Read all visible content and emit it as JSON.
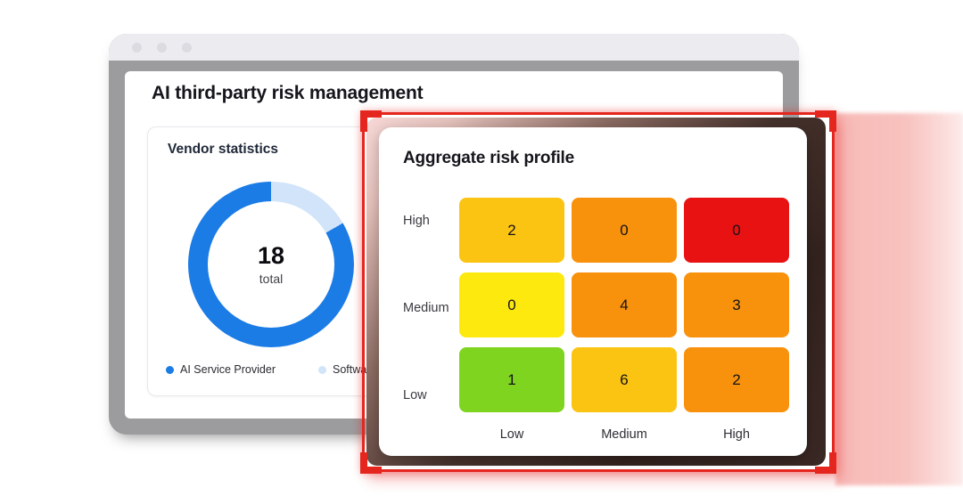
{
  "back_window": {
    "title": "AI third-party risk management",
    "titlebar": {
      "dot_color": "#DCDBE1"
    },
    "vendor_card": {
      "title": "Vendor statistics",
      "center_value": "18",
      "center_label": "total",
      "legend": [
        {
          "label": "AI Service Provider",
          "color": "#1B7CE6"
        },
        {
          "label": "Software Provider",
          "color": "#D2E4FA"
        }
      ]
    }
  },
  "front_window": {
    "title": "Aggregate risk profile",
    "highlight_color": "#E5261F",
    "row_labels": [
      "High",
      "Medium",
      "Low"
    ],
    "col_labels": [
      "Low",
      "Medium",
      "High"
    ],
    "cells": [
      [
        {
          "value": "2",
          "color": "#FBC412"
        },
        {
          "value": "0",
          "color": "#F8910B"
        },
        {
          "value": "0",
          "color": "#E81212"
        }
      ],
      [
        {
          "value": "0",
          "color": "#FDE90E"
        },
        {
          "value": "4",
          "color": "#F8910B"
        },
        {
          "value": "3",
          "color": "#F8910B"
        }
      ],
      [
        {
          "value": "1",
          "color": "#7FD41F"
        },
        {
          "value": "6",
          "color": "#FBC412"
        },
        {
          "value": "2",
          "color": "#F8910B"
        }
      ]
    ]
  },
  "chart_data": [
    {
      "type": "pie",
      "subtype": "donut",
      "title": "Vendor statistics",
      "labels": [
        "AI Service Provider",
        "Software Provider"
      ],
      "values": [
        15,
        3
      ],
      "total": 18,
      "colors": [
        "#1B7CE6",
        "#D2E4FA"
      ],
      "center_text": [
        "18",
        "total"
      ],
      "legend_position": "bottom"
    },
    {
      "type": "heatmap",
      "title": "Aggregate risk profile",
      "x_labels": [
        "Low",
        "Medium",
        "High"
      ],
      "y_labels": [
        "High",
        "Medium",
        "Low"
      ],
      "values": [
        [
          2,
          0,
          0
        ],
        [
          0,
          4,
          3
        ],
        [
          1,
          6,
          2
        ]
      ],
      "cell_colors": [
        [
          "#FBC412",
          "#F8910B",
          "#E81212"
        ],
        [
          "#FDE90E",
          "#F8910B",
          "#F8910B"
        ],
        [
          "#7FD41F",
          "#FBC412",
          "#F8910B"
        ]
      ]
    }
  ]
}
